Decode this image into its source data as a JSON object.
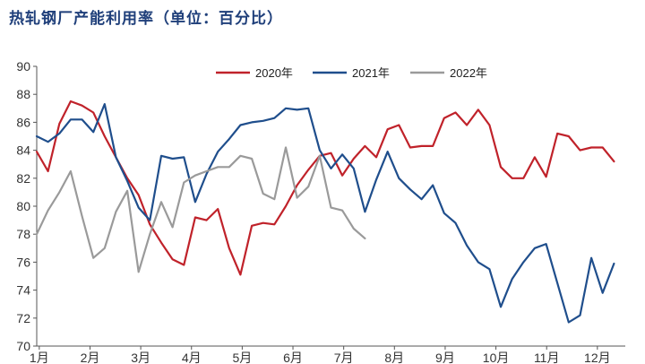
{
  "chart_data": {
    "type": "line",
    "title": "热轧钢厂产能利用率（单位：百分比）",
    "xlabel": "",
    "ylabel": "",
    "ylim": [
      70,
      90
    ],
    "yticks": [
      70,
      72,
      74,
      76,
      78,
      80,
      82,
      84,
      86,
      88,
      90
    ],
    "x_tick_labels": [
      "1月",
      "2月",
      "3月",
      "4月",
      "5月",
      "6月",
      "7月",
      "8月",
      "9月",
      "10月",
      "11月",
      "12月"
    ],
    "grid": false,
    "legend_position": "top-center",
    "series": [
      {
        "name": "2020年",
        "color": "#c0222a",
        "x": [
          1,
          2,
          3,
          4,
          5,
          6,
          7,
          8,
          9,
          10,
          11,
          12,
          13,
          14,
          15,
          16,
          17,
          18,
          19,
          20,
          21,
          22,
          23,
          24,
          25,
          26,
          27,
          28,
          29,
          30,
          31,
          32,
          33,
          34,
          35,
          36,
          37,
          38,
          39,
          40,
          41,
          42,
          43,
          44,
          45,
          46,
          47,
          48,
          49,
          50,
          51,
          52,
          53
        ],
        "values": [
          83.9,
          82.5,
          85.9,
          87.5,
          87.2,
          86.7,
          85.0,
          83.5,
          82.0,
          80.8,
          78.7,
          77.4,
          76.2,
          75.8,
          79.2,
          79.0,
          79.8,
          77.0,
          75.1,
          78.6,
          78.8,
          78.7,
          80.0,
          81.5,
          82.6,
          83.6,
          83.8,
          82.2,
          83.4,
          84.3,
          83.5,
          85.5,
          85.8,
          84.2,
          84.3,
          84.3,
          86.3,
          86.7,
          85.8,
          86.9,
          85.8,
          82.8,
          82.0,
          82.0,
          83.5,
          82.1,
          85.2,
          85.0,
          84.0,
          84.2,
          84.2,
          83.2,
          null
        ]
      },
      {
        "name": "2021年",
        "color": "#1f4e8c",
        "x": [
          1,
          2,
          3,
          4,
          5,
          6,
          7,
          8,
          9,
          10,
          11,
          12,
          13,
          14,
          15,
          16,
          17,
          18,
          19,
          20,
          21,
          22,
          23,
          24,
          25,
          26,
          27,
          28,
          29,
          30,
          31,
          32,
          33,
          34,
          35,
          36,
          37,
          38,
          39,
          40,
          41,
          42,
          43,
          44,
          45,
          46,
          47,
          48,
          49,
          50,
          51,
          52,
          53
        ],
        "values": [
          85.0,
          84.6,
          85.2,
          86.2,
          86.2,
          85.3,
          87.3,
          83.5,
          81.8,
          79.9,
          79.0,
          83.6,
          83.4,
          83.5,
          80.3,
          82.3,
          83.9,
          84.8,
          85.8,
          86.0,
          86.1,
          86.3,
          87.0,
          86.9,
          87.0,
          84.0,
          82.7,
          83.7,
          82.7,
          79.6,
          81.9,
          83.9,
          82.0,
          81.2,
          80.5,
          81.5,
          79.5,
          78.8,
          77.2,
          76.0,
          75.5,
          72.8,
          74.8,
          76.0,
          77.0,
          77.3,
          74.5,
          71.7,
          72.2,
          76.3,
          73.8,
          75.9,
          null
        ]
      },
      {
        "name": "2022年",
        "color": "#9a9a9a",
        "x": [
          1,
          2,
          3,
          4,
          5,
          6,
          7,
          8,
          9,
          10,
          11,
          12,
          13,
          14,
          15,
          16,
          17,
          18,
          19,
          20,
          21,
          22,
          23,
          24,
          25,
          26,
          27,
          28,
          29,
          30
        ],
        "values": [
          78.0,
          79.7,
          81.0,
          82.5,
          79.3,
          76.3,
          77.0,
          79.6,
          81.1,
          75.3,
          78.0,
          80.3,
          78.5,
          81.7,
          82.2,
          82.5,
          82.8,
          82.8,
          83.6,
          83.4,
          80.9,
          80.5,
          84.2,
          80.6,
          81.4,
          83.6,
          79.9,
          79.7,
          78.4,
          77.7
        ]
      }
    ]
  }
}
